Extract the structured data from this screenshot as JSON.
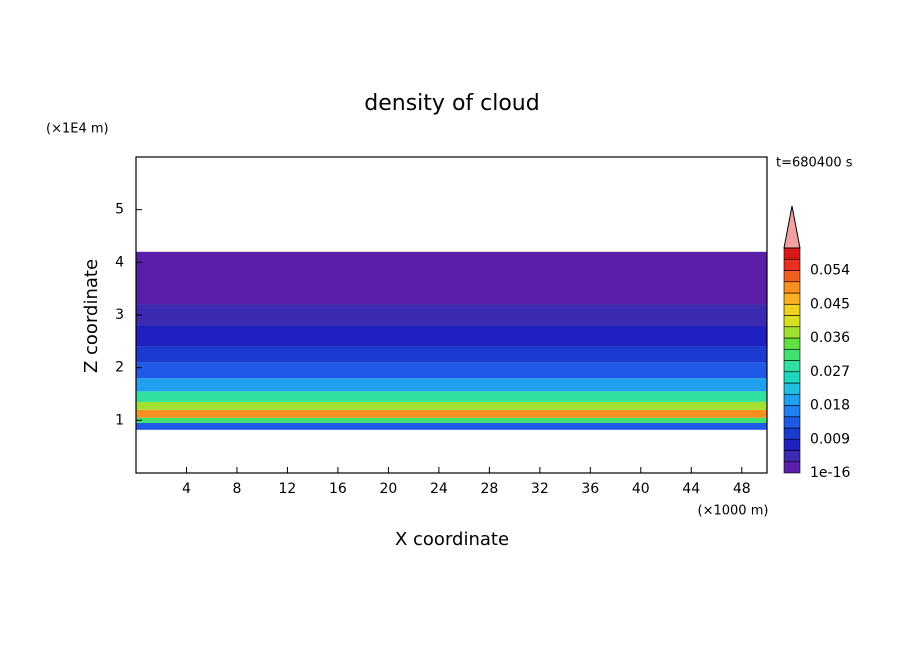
{
  "chart_data": {
    "type": "contour",
    "title": "density of cloud",
    "x_label": "X coordinate",
    "y_label": "Z coordinate",
    "x_unit": "(×1000 m)",
    "y_unit": "(×1E4 m)",
    "time_label": "t=680400 s",
    "xlim": [
      0,
      50
    ],
    "ylim": [
      0,
      6
    ],
    "xticks": [
      4,
      8,
      12,
      16,
      20,
      24,
      28,
      32,
      36,
      40,
      44,
      48
    ],
    "yticks": [
      1,
      2,
      3,
      4,
      5
    ],
    "field": {
      "z": [
        0.82,
        0.95,
        1.05,
        1.2,
        1.35,
        1.55,
        1.8,
        2.1,
        2.4,
        2.8,
        3.2,
        4.2
      ],
      "values": [
        0.012,
        0.03,
        0.05,
        0.038,
        0.028,
        0.02,
        0.014,
        0.01,
        0.006,
        0.004,
        0.002
      ]
    },
    "colorbar": {
      "lim": [
        0,
        0.06
      ],
      "ticks": [
        {
          "value": 1e-16,
          "label": "1e-16"
        },
        0.009,
        0.018,
        0.027,
        0.036,
        0.045,
        0.054
      ],
      "colors": [
        "#5a1ea8",
        "#3c2bb0",
        "#2020c0",
        "#1a3ad0",
        "#1e5ae6",
        "#2080f0",
        "#20a0f0",
        "#20c0e0",
        "#20d8c0",
        "#30e0a0",
        "#40e070",
        "#60e040",
        "#a0e030",
        "#d8e020",
        "#f0d020",
        "#f8b020",
        "#f89020",
        "#f06020",
        "#e83020",
        "#d81818"
      ],
      "extend_color": "#f0a0a0"
    }
  }
}
